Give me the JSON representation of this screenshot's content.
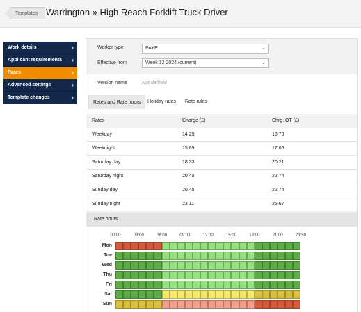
{
  "header": {
    "back_label": "Templates",
    "title": "Warrington » High Reach Forklift Truck Driver"
  },
  "sidebar": {
    "items": [
      {
        "label": "Work details",
        "active": false
      },
      {
        "label": "Applicant requirements",
        "active": false
      },
      {
        "label": "Rates",
        "active": true
      },
      {
        "label": "Advanced settings",
        "active": false
      },
      {
        "label": "Template changes",
        "active": false
      }
    ],
    "chevron": "›"
  },
  "form": {
    "worker_type_label": "Worker type",
    "worker_type_value": "PAYE",
    "effective_from_label": "Effective from",
    "effective_from_value": "Week 12 2024 (current)",
    "version_name_label": "Version name",
    "version_name_value": "Not defined"
  },
  "tabs": [
    {
      "label": "Rates and Rate hours",
      "active": true
    },
    {
      "label": "Holiday rates",
      "active": false
    },
    {
      "label": "Rate rules",
      "active": false
    }
  ],
  "rates_table": {
    "headers": [
      "Rates",
      "Charge (£)",
      "Chrg. OT (£)"
    ],
    "rows": [
      [
        "Weekday",
        "14.25",
        "16.76"
      ],
      [
        "Weeknight",
        "15.89",
        "17.65"
      ],
      [
        "Saturday day",
        "18.33",
        "20.21"
      ],
      [
        "Saturday night",
        "20.45",
        "22.74"
      ],
      [
        "Sunday day",
        "20.45",
        "22.74"
      ],
      [
        "Sunday night",
        "23.11",
        "25.67"
      ]
    ]
  },
  "rate_hours": {
    "title": "Rate hours",
    "time_labels": [
      "00:00",
      "03:00",
      "06:00",
      "09:00",
      "12:00",
      "15:00",
      "18:00",
      "21:00",
      "23:59"
    ],
    "colors": {
      "weekday": "#95e07f",
      "weeknight": "#5cad45",
      "saturday_day": "#f7ea6b",
      "saturday_night": "#d8c13d",
      "sunday_day": "#f3a08e",
      "sunday_night": "#d45a3d"
    },
    "days": [
      {
        "label": "Mon",
        "pattern": [
          "sunday_night",
          6,
          "weekday",
          12,
          "weeknight",
          6
        ]
      },
      {
        "label": "Tue",
        "pattern": [
          "weeknight",
          6,
          "weekday",
          12,
          "weeknight",
          6
        ]
      },
      {
        "label": "Wed",
        "pattern": [
          "weeknight",
          6,
          "weekday",
          12,
          "weeknight",
          6
        ]
      },
      {
        "label": "Thu",
        "pattern": [
          "weeknight",
          6,
          "weekday",
          12,
          "weeknight",
          6
        ]
      },
      {
        "label": "Fri",
        "pattern": [
          "weeknight",
          6,
          "weekday",
          12,
          "weeknight",
          6
        ]
      },
      {
        "label": "Sat",
        "pattern": [
          "weeknight",
          6,
          "saturday_day",
          12,
          "saturday_night",
          6
        ]
      },
      {
        "label": "Sun",
        "pattern": [
          "saturday_night",
          6,
          "sunday_day",
          12,
          "sunday_night",
          6
        ]
      }
    ]
  }
}
